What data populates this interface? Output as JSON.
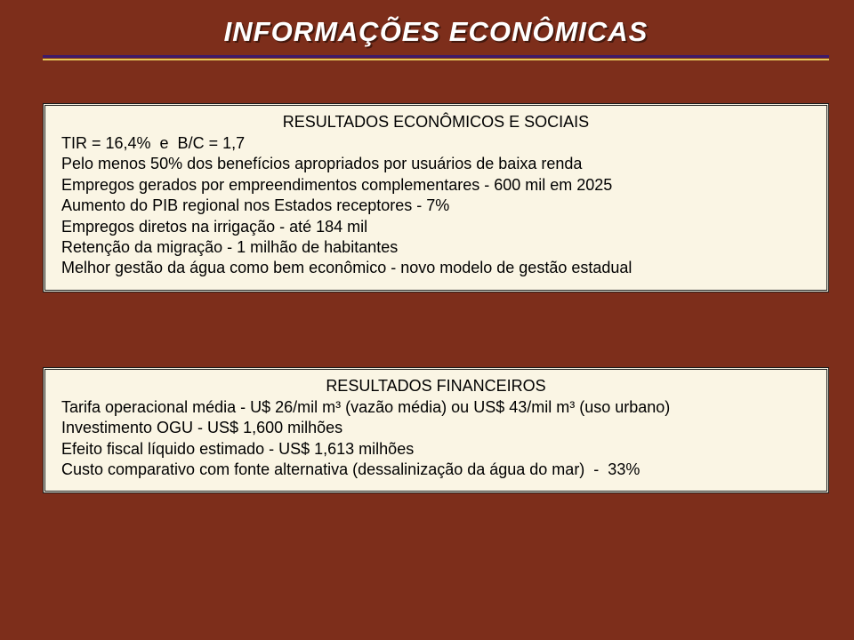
{
  "title": "INFORMAÇÕES ECONÔMICAS",
  "colors": {
    "background": "#7d2e1b",
    "box_bg": "#faf5e4",
    "box_border": "#1c1c1c",
    "title_text": "#ffffff",
    "rule_top": "#3d1a6b",
    "rule_bottom": "#e4c85a",
    "body_text": "#000000"
  },
  "typography": {
    "title_fontsize": 31,
    "title_weight": "bold",
    "title_style": "italic",
    "body_fontsize": 18,
    "header_fontsize": 18
  },
  "box1": {
    "header": "RESULTADOS ECONÔMICOS E SOCIAIS",
    "lines": [
      "TIR = 16,4%  e  B/C = 1,7",
      "Pelo menos 50% dos benefícios apropriados por usuários de baixa renda",
      "Empregos gerados por empreendimentos complementares - 600 mil em 2025",
      "Aumento do PIB regional nos Estados receptores - 7%",
      "Empregos diretos na irrigação - até 184 mil",
      "Retenção da migração - 1 milhão de habitantes",
      "Melhor gestão da água como bem econômico - novo modelo de gestão estadual"
    ]
  },
  "box2": {
    "header": "RESULTADOS FINANCEIROS",
    "lines": [
      "Tarifa operacional média - U$ 26/mil m³ (vazão média) ou US$ 43/mil m³ (uso urbano)",
      "Investimento OGU - US$ 1,600 milhões",
      "Efeito fiscal líquido estimado - US$ 1,613 milhões",
      "Custo comparativo com fonte alternativa (dessalinização da água do mar)  -  33%"
    ]
  }
}
